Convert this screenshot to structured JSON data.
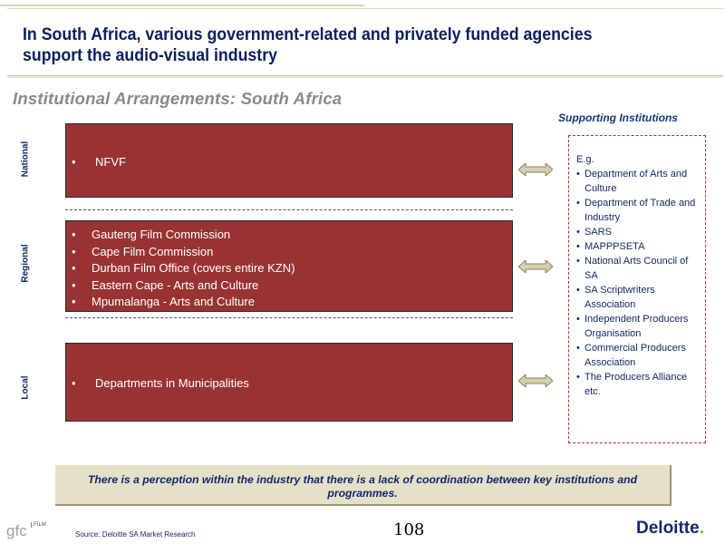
{
  "header": {
    "title": "In South Africa, various government-related and privately funded agencies support the audio-visual industry"
  },
  "subtitle": "Institutional Arrangements: South Africa",
  "supporting_title": "Supporting Institutions",
  "levels": {
    "national": {
      "label": "National",
      "items": [
        "NFVF"
      ]
    },
    "regional": {
      "label": "Regional",
      "items": [
        "Gauteng Film Commission",
        "Cape Film Commission",
        "Durban Film Office (covers entire KZN)",
        "Eastern Cape - Arts and Culture",
        "Mpumalanga - Arts and Culture"
      ]
    },
    "local": {
      "label": "Local",
      "items": [
        "Departments in Municipalities"
      ]
    }
  },
  "supporting": {
    "intro": "E.g.",
    "items": [
      "Department of Arts and Culture",
      "Department of Trade and Industry",
      "SARS",
      "MAPPPSETA",
      "National Arts Council of SA",
      "SA Scriptwriters Association",
      "Independent Producers Organisation",
      "Commercial Producers Association",
      "The Producers Alliance"
    ],
    "outro": "etc."
  },
  "perception_note": "There is a perception within the industry that there is a lack of coordination between key institutions and programmes.",
  "footer": {
    "source": "Source: Deloitte SA Market Research",
    "page_number": "108",
    "brand": "Deloitte",
    "brand_dot": ".",
    "gfc_logo_text": "gfc",
    "gfc_logo_sub": "FILM"
  },
  "colors": {
    "title_navy": "#0b1f5e",
    "box_red": "#993333",
    "note_bg": "#e5e0c8",
    "deloitte_green": "#86bc25"
  },
  "icons": [
    "double-arrow-icon",
    "gfc-film-logo"
  ]
}
